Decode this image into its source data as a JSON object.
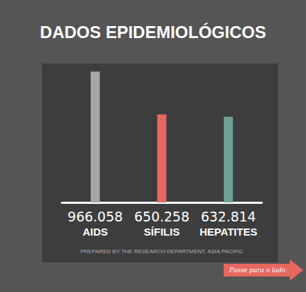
{
  "chart_data": {
    "type": "bar",
    "title": "DADOS EPIDEMIOLÓGICOS",
    "categories": [
      "AIDS",
      "SÍFILIS",
      "HEPATITES"
    ],
    "values": [
      966058,
      650258,
      632814
    ],
    "value_labels": [
      "966.058",
      "650.258",
      "632.814"
    ],
    "colors": [
      "#a6a6a6",
      "#e8685f",
      "#6f9f95"
    ],
    "ylim": [
      0,
      1000000
    ],
    "grid": false,
    "data_labels": true,
    "tick_labels": "x",
    "annotations": [
      "PREPARED BY THE RESEARCH DEPARTMENT, ASIA PACIFIC",
      "Passe para o lado"
    ]
  }
}
